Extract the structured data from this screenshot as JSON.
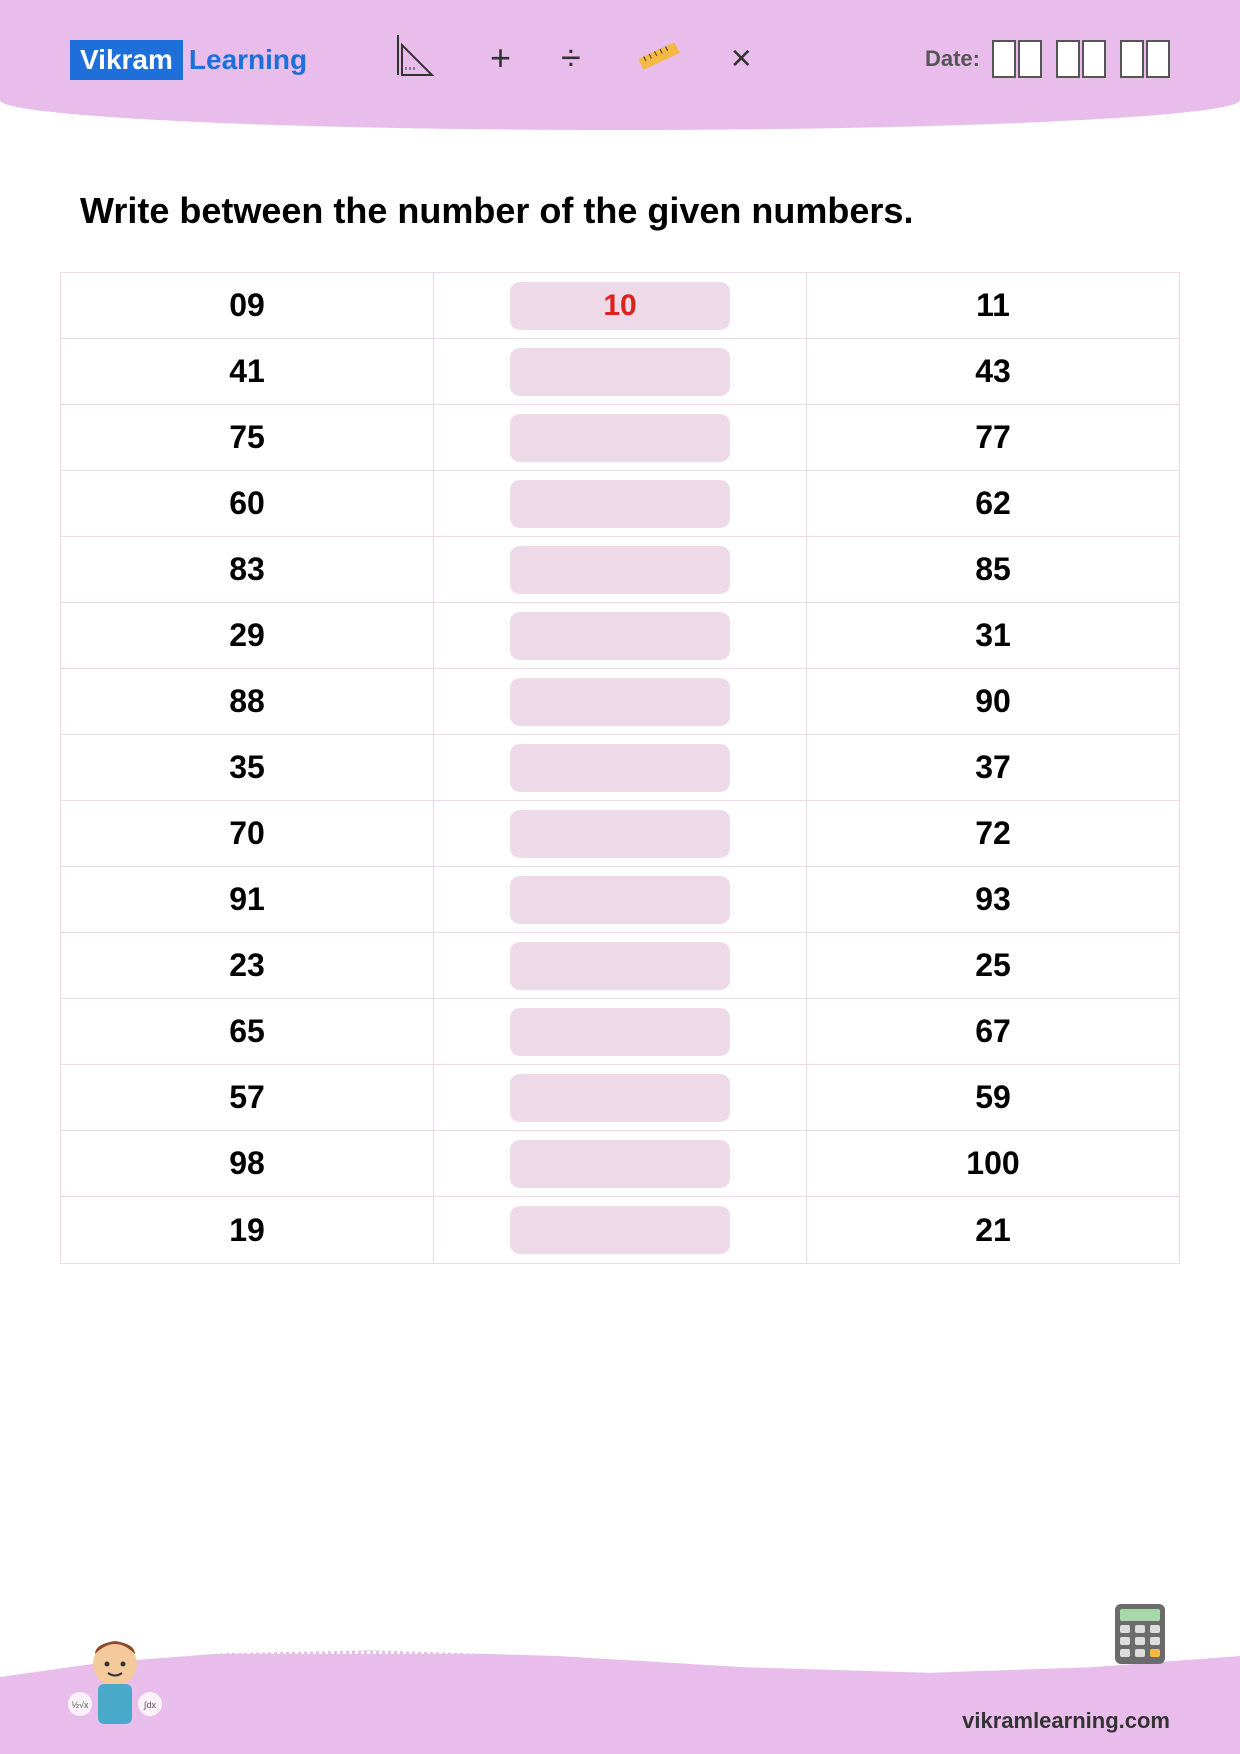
{
  "header": {
    "logo_part1": "Vikram",
    "logo_part2": "Learning",
    "symbols": [
      "+",
      "÷",
      "×"
    ],
    "date_label": "Date:"
  },
  "instruction": "Write between the number of the given numbers.",
  "table": {
    "rows": [
      {
        "left": "09",
        "middle": "10",
        "right": "11"
      },
      {
        "left": "41",
        "middle": "",
        "right": "43"
      },
      {
        "left": "75",
        "middle": "",
        "right": "77"
      },
      {
        "left": "60",
        "middle": "",
        "right": "62"
      },
      {
        "left": "83",
        "middle": "",
        "right": "85"
      },
      {
        "left": "29",
        "middle": "",
        "right": "31"
      },
      {
        "left": "88",
        "middle": "",
        "right": "90"
      },
      {
        "left": "35",
        "middle": "",
        "right": "37"
      },
      {
        "left": "70",
        "middle": "",
        "right": "72"
      },
      {
        "left": "91",
        "middle": "",
        "right": "93"
      },
      {
        "left": "23",
        "middle": "",
        "right": "25"
      },
      {
        "left": "65",
        "middle": "",
        "right": "67"
      },
      {
        "left": "57",
        "middle": "",
        "right": "59"
      },
      {
        "left": "98",
        "middle": "",
        "right": "100"
      },
      {
        "left": "19",
        "middle": "",
        "right": "21"
      }
    ]
  },
  "footer": {
    "url": "vikramlearning.com"
  },
  "colors": {
    "header_bg": "#e9bdeb",
    "logo_bg": "#1e6fd9",
    "answer_bg": "#eed9e8",
    "answer_text": "#d9221e",
    "border": "#f0d8e8"
  }
}
